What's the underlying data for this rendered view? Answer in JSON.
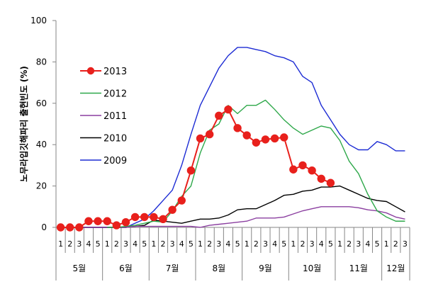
{
  "chart_data": {
    "type": "line",
    "title": "",
    "ylabel": "노무라입깃해파리 출현빈도 (%)",
    "xlabel": "",
    "ylim": [
      0,
      100
    ],
    "yticks": [
      0,
      20,
      40,
      60,
      80,
      100
    ],
    "x": [
      "5월 1",
      "5월 2",
      "5월 3",
      "5월 4",
      "5월 5",
      "6월 1",
      "6월 2",
      "6월 3",
      "6월 4",
      "6월 5",
      "7월 1",
      "7월 2",
      "7월 3",
      "7월 4",
      "7월 5",
      "8월 1",
      "8월 2",
      "8월 3",
      "8월 4",
      "8월 5",
      "9월 1",
      "9월 2",
      "9월 3",
      "9월 4",
      "9월 5",
      "10월 1",
      "10월 2",
      "10월 3",
      "10월 4",
      "10월 5",
      "11월 1",
      "11월 2",
      "11월 3",
      "11월 4",
      "11월 5",
      "12월 1",
      "12월 2",
      "12월 3"
    ],
    "week_labels": [
      "1",
      "2",
      "3",
      "4",
      "5",
      "1",
      "2",
      "3",
      "4",
      "5",
      "1",
      "2",
      "3",
      "4",
      "5",
      "1",
      "2",
      "3",
      "4",
      "5",
      "1",
      "2",
      "3",
      "4",
      "5",
      "1",
      "2",
      "3",
      "4",
      "5",
      "1",
      "2",
      "3",
      "4",
      "5",
      "1",
      "2",
      "3"
    ],
    "months": [
      {
        "label": "5월",
        "weeks": 5
      },
      {
        "label": "6월",
        "weeks": 5
      },
      {
        "label": "7월",
        "weeks": 5
      },
      {
        "label": "8월",
        "weeks": 5
      },
      {
        "label": "9월",
        "weeks": 5
      },
      {
        "label": "10월",
        "weeks": 5
      },
      {
        "label": "11월",
        "weeks": 5
      },
      {
        "label": "12월",
        "weeks": 3
      }
    ],
    "series": [
      {
        "name": "2013",
        "color": "#e8201c",
        "marker": true,
        "values": [
          0,
          0,
          0,
          3,
          3,
          3,
          1,
          2.5,
          5,
          5,
          5,
          4,
          8.5,
          13,
          27.5,
          43,
          45,
          54,
          57,
          48,
          44.5,
          41,
          42.5,
          43,
          43.5,
          28,
          30,
          27.5,
          23.5,
          21.5,
          null,
          null,
          null,
          null,
          null,
          null,
          null,
          null
        ]
      },
      {
        "name": "2012",
        "color": "#2ea84a",
        "marker": false,
        "values": [
          null,
          null,
          null,
          null,
          null,
          0,
          0,
          0.5,
          1,
          2,
          3,
          2.5,
          8,
          15,
          20,
          36,
          47,
          50,
          59,
          55,
          59,
          59,
          61.5,
          57,
          52,
          48,
          45,
          47,
          49,
          48,
          42,
          32,
          26,
          16,
          8,
          5,
          3,
          3
        ]
      },
      {
        "name": "2011",
        "color": "#8b3fa0",
        "marker": false,
        "values": [
          0,
          0,
          0,
          0,
          0,
          0,
          0,
          0,
          0.5,
          0.5,
          0.5,
          0.5,
          0.5,
          0.5,
          0.5,
          0,
          1,
          1.5,
          2,
          2.5,
          3,
          4.5,
          4.5,
          4.5,
          5,
          6.5,
          8,
          9,
          10,
          10,
          10,
          10,
          9.5,
          8.5,
          8,
          7,
          5,
          4
        ]
      },
      {
        "name": "2010",
        "color": "#000000",
        "marker": false,
        "values": [
          0,
          0,
          0,
          0,
          0,
          0,
          0,
          0,
          0.5,
          1,
          3.5,
          3,
          2.5,
          2,
          3,
          4,
          4,
          4.5,
          6,
          8.5,
          9,
          9,
          11,
          13,
          15.5,
          16,
          17.5,
          18,
          19.5,
          19.5,
          20,
          18,
          16,
          14,
          13,
          12.5,
          10,
          7.5
        ]
      },
      {
        "name": "2009",
        "color": "#1c2bd4",
        "marker": false,
        "values": [
          0,
          0,
          0,
          0,
          0,
          0,
          0,
          0,
          2,
          4,
          8,
          13,
          18,
          30,
          45,
          59,
          68,
          77,
          83,
          87,
          87,
          86,
          85,
          83,
          82,
          80,
          73,
          70,
          59,
          52,
          45,
          40,
          37.5,
          37.5,
          41.5,
          40,
          37,
          37
        ]
      }
    ],
    "legend": [
      "2013",
      "2012",
      "2011",
      "2010",
      "2009"
    ],
    "legend_position": "left-inside",
    "grid": false
  }
}
